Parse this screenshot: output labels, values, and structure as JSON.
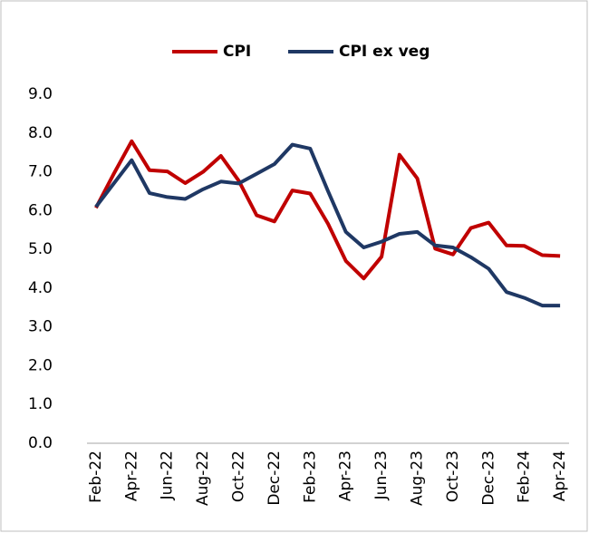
{
  "chart_data": {
    "type": "line",
    "categories": [
      "Feb-22",
      null,
      "Apr-22",
      null,
      "Jun-22",
      null,
      "Aug-22",
      null,
      "Oct-22",
      null,
      "Dec-22",
      null,
      "Feb-23",
      null,
      "Apr-23",
      null,
      "Jun-23",
      null,
      "Aug-23",
      null,
      "Oct-23",
      null,
      "Dec-23",
      null,
      "Feb-24",
      null,
      "Apr-24"
    ],
    "series": [
      {
        "name": "CPI",
        "color": "#c00000",
        "values": [
          6.07,
          6.95,
          7.79,
          7.04,
          7.01,
          6.71,
          7.0,
          7.41,
          6.77,
          5.88,
          5.72,
          6.52,
          6.44,
          5.66,
          4.7,
          4.25,
          4.81,
          7.44,
          6.83,
          5.02,
          4.87,
          5.55,
          5.69,
          5.1,
          5.09,
          4.85,
          4.83
        ]
      },
      {
        "name": "CPI ex veg",
        "color": "#1f3864",
        "values": [
          6.1,
          6.7,
          7.3,
          6.45,
          6.35,
          6.3,
          6.55,
          6.75,
          6.7,
          6.95,
          7.2,
          7.7,
          7.6,
          6.5,
          5.45,
          5.05,
          5.2,
          5.4,
          5.45,
          5.1,
          5.05,
          4.8,
          4.5,
          3.9,
          3.75,
          3.55,
          3.55
        ]
      }
    ],
    "ylim": [
      0,
      9
    ],
    "yticks": [
      {
        "value": 0,
        "label": "0.0"
      },
      {
        "value": 1,
        "label": "1.0"
      },
      {
        "value": 2,
        "label": "2.0"
      },
      {
        "value": 3,
        "label": "3.0"
      },
      {
        "value": 4,
        "label": "4.0"
      },
      {
        "value": 5,
        "label": "5.0"
      },
      {
        "value": 6,
        "label": "6.0"
      },
      {
        "value": 7,
        "label": "7.0"
      },
      {
        "value": 8,
        "label": "8.0"
      },
      {
        "value": 9,
        "label": "9.0"
      }
    ],
    "grid": false,
    "legend": "top"
  }
}
